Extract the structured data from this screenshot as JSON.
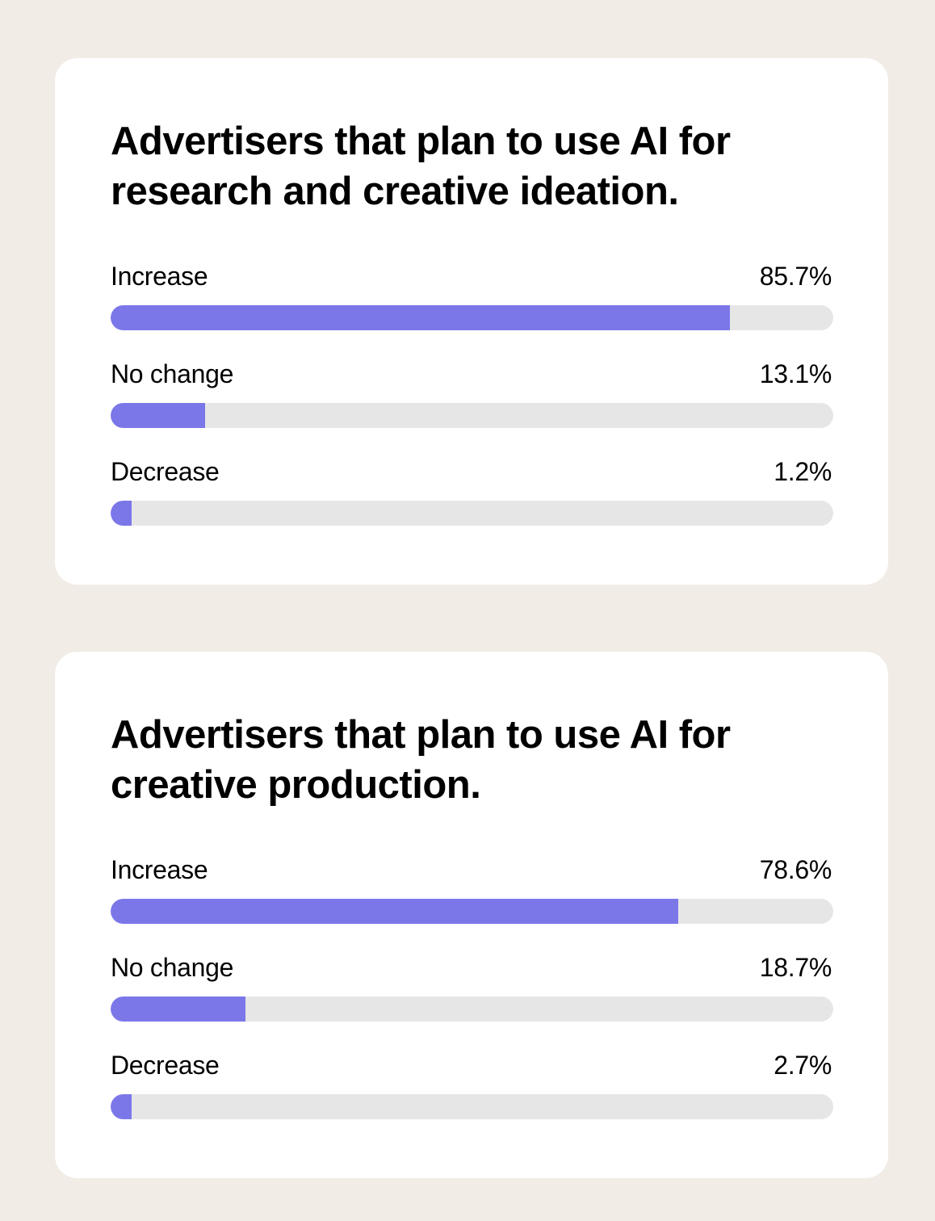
{
  "colors": {
    "background": "#f1ece5",
    "card": "#ffffff",
    "bar_fill": "#7b77e9",
    "bar_track": "#e6e6e6"
  },
  "chart_data": [
    {
      "type": "bar",
      "orientation": "horizontal",
      "title": "Advertisers that plan to use AI for research and creative ideation.",
      "categories": [
        "Increase",
        "No change",
        "Decrease"
      ],
      "values": [
        85.7,
        13.1,
        1.2
      ],
      "labels": [
        "85.7%",
        "13.1%",
        "1.2%"
      ],
      "xlim": [
        0,
        100
      ],
      "unit": "%",
      "grid": false
    },
    {
      "type": "bar",
      "orientation": "horizontal",
      "title": "Advertisers that plan to use AI for creative production.",
      "categories": [
        "Increase",
        "No change",
        "Decrease"
      ],
      "values": [
        78.6,
        18.7,
        2.7
      ],
      "labels": [
        "78.6%",
        "18.7%",
        "2.7%"
      ],
      "xlim": [
        0,
        100
      ],
      "unit": "%",
      "grid": false
    }
  ]
}
